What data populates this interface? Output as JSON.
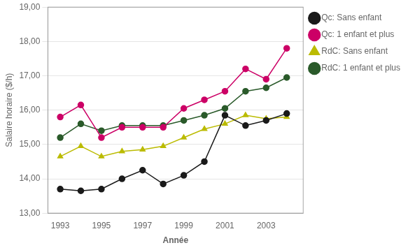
{
  "chart_data": {
    "type": "line",
    "x_label": "Année",
    "y_label": "Salaire horaire ($/h)",
    "x": [
      1993,
      1994,
      1995,
      1996,
      1997,
      1998,
      1999,
      2000,
      2001,
      2002,
      2003,
      2004
    ],
    "series": [
      {
        "name": "Qc: Sans enfant",
        "color": "#1a1a1a",
        "marker": "circle",
        "values": [
          13.7,
          13.65,
          13.7,
          14.0,
          14.25,
          13.85,
          14.1,
          14.5,
          15.85,
          15.55,
          15.7,
          15.9
        ]
      },
      {
        "name": "Qc: 1 enfant et plus",
        "color": "#cc0066",
        "marker": "square",
        "values": [
          15.8,
          16.15,
          15.2,
          15.5,
          15.5,
          15.5,
          16.05,
          16.3,
          16.55,
          17.2,
          16.9,
          17.8
        ]
      },
      {
        "name": "RdC: Sans enfant",
        "color": "#bbbb00",
        "marker": "triangle",
        "values": [
          14.65,
          14.95,
          14.65,
          14.8,
          14.85,
          14.95,
          15.2,
          15.45,
          15.6,
          15.85,
          15.75,
          15.8
        ]
      },
      {
        "name": "RdC: 1 enfant et plus",
        "color": "#2a5a2a",
        "marker": "circle",
        "values": [
          15.2,
          15.6,
          15.4,
          15.55,
          15.55,
          15.55,
          15.7,
          15.85,
          16.05,
          16.55,
          16.65,
          16.95
        ]
      }
    ],
    "xlim": [
      1992.4,
      2004.8
    ],
    "xticks": [
      1993,
      1995,
      1997,
      1999,
      2001,
      2003
    ],
    "ylim": [
      13.0,
      19.0
    ],
    "yticks": [
      {
        "value": 13.0,
        "label": "13,00"
      },
      {
        "value": 14.0,
        "label": "14,00"
      },
      {
        "value": 15.0,
        "label": "15,00"
      },
      {
        "value": 16.0,
        "label": "16,00"
      },
      {
        "value": 17.0,
        "label": "17,00"
      },
      {
        "value": 18.0,
        "label": "18,00"
      },
      {
        "value": 19.0,
        "label": "19,00"
      }
    ],
    "grid": "y",
    "legend": "right"
  }
}
